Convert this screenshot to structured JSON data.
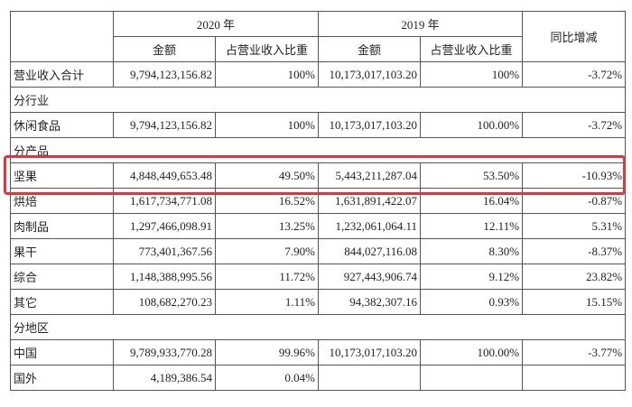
{
  "table": {
    "years": [
      "2020 年",
      "2019 年"
    ],
    "yoy": "同比增减",
    "subheaders": [
      "金额",
      "占营业收入比重",
      "金额",
      "占营业收入比重"
    ],
    "rows": [
      [
        "营业收入合计",
        "9,794,123,156.82",
        "100%",
        "10,173,017,103.20",
        "100%",
        "-3.72%"
      ],
      [
        "分行业"
      ],
      [
        "休闲食品",
        "9,794,123,156.82",
        "100%",
        "10,173,017,103.20",
        "100.00%",
        "-3.72%"
      ],
      [
        "分产品"
      ],
      [
        "坚果",
        "4,848,449,653.48",
        "49.50%",
        "5,443,211,287.04",
        "53.50%",
        "-10.93%"
      ],
      [
        "烘焙",
        "1,617,734,771.08",
        "16.52%",
        "1,631,891,422.07",
        "16.04%",
        "-0.87%"
      ],
      [
        "肉制品",
        "1,297,466,098.91",
        "13.25%",
        "1,232,061,064.11",
        "12.11%",
        "5.31%"
      ],
      [
        "果干",
        "773,401,367.56",
        "7.90%",
        "844,027,116.08",
        "8.30%",
        "-8.37%"
      ],
      [
        "综合",
        "1,148,388,995.56",
        "11.72%",
        "927,443,906.74",
        "9.12%",
        "23.82%"
      ],
      [
        "其它",
        "108,682,270.23",
        "1.11%",
        "94,382,307.16",
        "0.93%",
        "15.15%"
      ],
      [
        "分地区"
      ],
      [
        "中国",
        "9,789,933,770.28",
        "99.96%",
        "10,173,017,103.20",
        "100.00%",
        "-3.77%"
      ],
      [
        "国外",
        "4,189,386.54",
        "0.04%",
        "",
        "",
        ""
      ]
    ]
  }
}
